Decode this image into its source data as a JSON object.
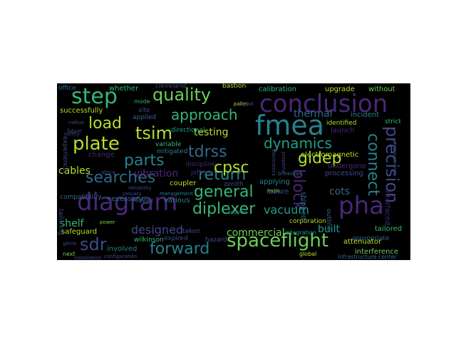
{
  "cloud": {
    "background": "#000000",
    "palette": {
      "purple": "#482878",
      "indigo": "#3e4a89",
      "blue": "#31688e",
      "teal": "#26828e",
      "green": "#1f9e89",
      "lightgreen": "#35b779",
      "lime": "#6ece58",
      "yellow": "#b5de2b"
    },
    "words": [
      {
        "text": "diagram",
        "color": "#482878"
      },
      {
        "text": "conclusion",
        "color": "#482878"
      },
      {
        "text": "pha",
        "color": "#482878"
      },
      {
        "text": "fmea",
        "color": "#26828e"
      },
      {
        "text": "step",
        "color": "#35b779"
      },
      {
        "text": "quality",
        "color": "#6ece58"
      },
      {
        "text": "spaceflight",
        "color": "#6ece58"
      },
      {
        "text": "approach",
        "color": "#35b779"
      },
      {
        "text": "tsim",
        "color": "#b5de2b"
      },
      {
        "text": "plate",
        "color": "#b5de2b"
      },
      {
        "text": "load",
        "color": "#b5de2b"
      },
      {
        "text": "parts",
        "color": "#26828e"
      },
      {
        "text": "searches",
        "color": "#31688e"
      },
      {
        "text": "general",
        "color": "#35b779"
      },
      {
        "text": "return",
        "color": "#26828e"
      },
      {
        "text": "diplexer",
        "color": "#35b779"
      },
      {
        "text": "forward",
        "color": "#26828e"
      },
      {
        "text": "tdrss",
        "color": "#31688e"
      },
      {
        "text": "cpsc",
        "color": "#b5de2b"
      },
      {
        "text": "gidep",
        "color": "#b5de2b"
      },
      {
        "text": "dynamics",
        "color": "#1f9e89"
      },
      {
        "text": "block",
        "color": "#482878"
      },
      {
        "text": "precision",
        "color": "#3e4a89"
      },
      {
        "text": "connect",
        "color": "#26828e"
      },
      {
        "text": "sdr",
        "color": "#3e4a89"
      },
      {
        "text": "designed",
        "color": "#3e4a89"
      },
      {
        "text": "commercial",
        "color": "#6ece58"
      },
      {
        "text": "vacuum",
        "color": "#1f9e89"
      },
      {
        "text": "testing",
        "color": "#b5de2b"
      },
      {
        "text": "cots",
        "color": "#31688e"
      },
      {
        "text": "vibration",
        "color": "#482878"
      },
      {
        "text": "cables",
        "color": "#b5de2b"
      },
      {
        "text": "shelf",
        "color": "#35b779"
      },
      {
        "text": "built",
        "color": "#1f9e89"
      },
      {
        "text": "thermal",
        "color": "#31688e"
      },
      {
        "text": "calibration",
        "color": "#35b779"
      },
      {
        "text": "upgrade",
        "color": "#b5de2b"
      },
      {
        "text": "without",
        "color": "#6ece58"
      },
      {
        "text": "successfully",
        "color": "#b5de2b"
      },
      {
        "text": "whether",
        "color": "#35b779"
      },
      {
        "text": "cleveland",
        "color": "#3e4a89"
      },
      {
        "text": "bastion",
        "color": "#b5de2b"
      },
      {
        "text": "office",
        "color": "#31688e"
      },
      {
        "text": "directional",
        "color": "#1f9e89"
      },
      {
        "text": "mode",
        "color": "#35b779"
      },
      {
        "text": "site",
        "color": "#3e4a89"
      },
      {
        "text": "applied",
        "color": "#31688e"
      },
      {
        "text": "variable",
        "color": "#35b779"
      },
      {
        "text": "mitigated",
        "color": "#26828e"
      },
      {
        "text": "incident",
        "color": "#26828e"
      },
      {
        "text": "identified",
        "color": "#b5de2b"
      },
      {
        "text": "strict",
        "color": "#35b779"
      },
      {
        "text": "launch",
        "color": "#482878"
      },
      {
        "text": "electromagnetic",
        "color": "#b5de2b"
      },
      {
        "text": "undergone",
        "color": "#482878"
      },
      {
        "text": "processing",
        "color": "#3e4a89"
      },
      {
        "text": "applying",
        "color": "#26828e"
      },
      {
        "text": "failure",
        "color": "#3e4a89"
      },
      {
        "text": "shipped",
        "color": "#31688e"
      },
      {
        "text": "interfaced",
        "color": "#482878"
      },
      {
        "text": "tailored",
        "color": "#35b779"
      },
      {
        "text": "appropriate",
        "color": "#31688e"
      },
      {
        "text": "attenuator",
        "color": "#b5de2b"
      },
      {
        "text": "interference",
        "color": "#6ece58"
      },
      {
        "text": "coupler",
        "color": "#b5de2b"
      },
      {
        "text": "necessary",
        "color": "#31688e"
      },
      {
        "text": "various",
        "color": "#26828e"
      },
      {
        "text": "taken",
        "color": "#3e4a89"
      },
      {
        "text": "expired",
        "color": "#3e4a89"
      },
      {
        "text": "involved",
        "color": "#26828e"
      },
      {
        "text": "safeguard",
        "color": "#b5de2b"
      },
      {
        "text": "compatibility",
        "color": "#31688e"
      },
      {
        "text": "discipline",
        "color": "#482878"
      },
      {
        "text": "jeffrey",
        "color": "#482878"
      },
      {
        "text": "zenith",
        "color": "#3e4a89"
      },
      {
        "text": "wilkinson",
        "color": "#35b779"
      },
      {
        "text": "hazard",
        "color": "#3e4a89"
      },
      {
        "text": "corporation",
        "color": "#b5de2b"
      },
      {
        "text": "integration",
        "color": "#1f9e89"
      },
      {
        "text": "outline",
        "color": "#31688e"
      },
      {
        "text": "global",
        "color": "#b5de2b"
      },
      {
        "text": "infrastructure center",
        "color": "#31688e"
      },
      {
        "text": "change",
        "color": "#482878"
      },
      {
        "text": "experience",
        "color": "#3e4a89"
      },
      {
        "text": "tailoring",
        "color": "#3e4a89"
      },
      {
        "text": "next",
        "color": "#6ece58"
      },
      {
        "text": "glenn",
        "color": "#3e4a89"
      },
      {
        "text": "support",
        "color": "#26828e"
      },
      {
        "text": "control",
        "color": "#26828e"
      },
      {
        "text": "power",
        "color": "#6ece58"
      },
      {
        "text": "january",
        "color": "#3e4a89"
      },
      {
        "text": "reliability",
        "color": "#3e4a89"
      },
      {
        "text": "management",
        "color": "#26828e"
      },
      {
        "text": "brinkman",
        "color": "#31688e"
      },
      {
        "text": "electronics",
        "color": "#3e4a89"
      },
      {
        "text": "radius",
        "color": "#3e4a89"
      },
      {
        "text": "future",
        "color": "#3e4a89"
      },
      {
        "text": "safety",
        "color": "#3e4a89"
      },
      {
        "text": "pallet",
        "color": "#b5de2b"
      },
      {
        "text": "quad",
        "color": "#3e4a89"
      },
      {
        "text": "africa",
        "color": "#3e4a89"
      },
      {
        "text": "configuration",
        "color": "#3e4a89"
      },
      {
        "text": "installation",
        "color": "#3e4a89"
      },
      {
        "text": "property",
        "color": "#3e4a89"
      },
      {
        "text": "requirements",
        "color": "#3e4a89"
      },
      {
        "text": "expo",
        "color": "#6ece58"
      }
    ]
  }
}
